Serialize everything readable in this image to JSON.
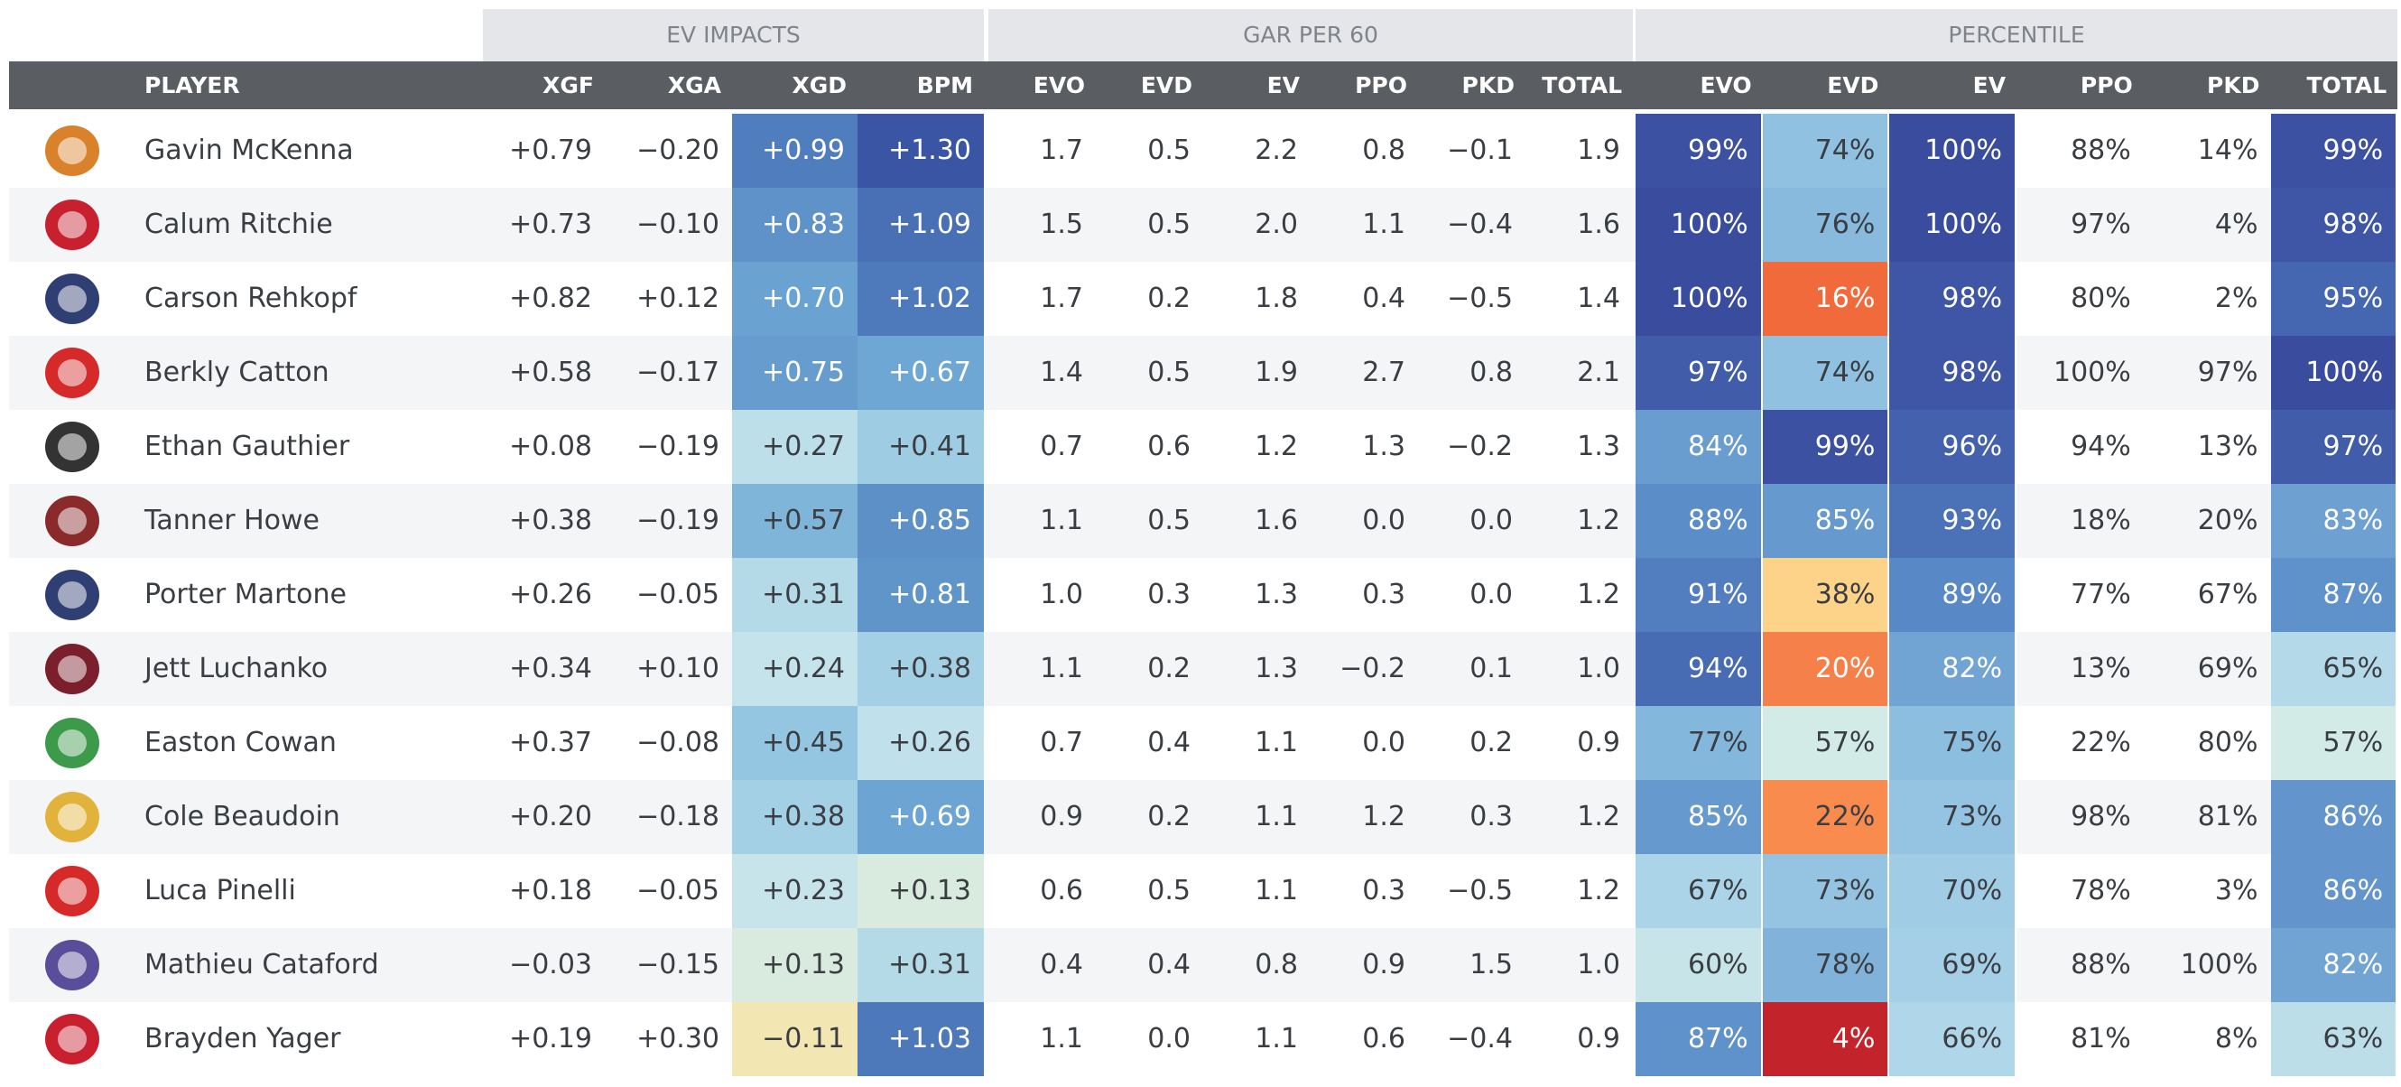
{
  "group_headers": [
    "EV IMPACTS",
    "GAR PER 60",
    "PERCENTILE"
  ],
  "columns": [
    "PLAYER",
    "XGF",
    "XGA",
    "XGD",
    "BPM",
    "EVO",
    "EVD",
    "EV",
    "PPO",
    "PKD",
    "TOTAL",
    "EVO",
    "EVD",
    "EV",
    "PPO",
    "PKD",
    "TOTAL"
  ],
  "rows": [
    {
      "player": "Gavin McKenna",
      "cells": [
        "+0.79",
        "−0.20",
        "+0.99",
        "+1.30",
        "1.7",
        "0.5",
        "2.2",
        "0.8",
        "−0.1",
        "1.9",
        "99%",
        "74%",
        "100%",
        "88%",
        "14%",
        "99%"
      ]
    },
    {
      "player": "Calum Ritchie",
      "cells": [
        "+0.73",
        "−0.10",
        "+0.83",
        "+1.09",
        "1.5",
        "0.5",
        "2.0",
        "1.1",
        "−0.4",
        "1.6",
        "100%",
        "76%",
        "100%",
        "97%",
        "4%",
        "98%"
      ]
    },
    {
      "player": "Carson Rehkopf",
      "cells": [
        "+0.82",
        "+0.12",
        "+0.70",
        "+1.02",
        "1.7",
        "0.2",
        "1.8",
        "0.4",
        "−0.5",
        "1.4",
        "100%",
        "16%",
        "98%",
        "80%",
        "2%",
        "95%"
      ]
    },
    {
      "player": "Berkly Catton",
      "cells": [
        "+0.58",
        "−0.17",
        "+0.75",
        "+0.67",
        "1.4",
        "0.5",
        "1.9",
        "2.7",
        "0.8",
        "2.1",
        "97%",
        "74%",
        "98%",
        "100%",
        "97%",
        "100%"
      ]
    },
    {
      "player": "Ethan Gauthier",
      "cells": [
        "+0.08",
        "−0.19",
        "+0.27",
        "+0.41",
        "0.7",
        "0.6",
        "1.2",
        "1.3",
        "−0.2",
        "1.3",
        "84%",
        "99%",
        "96%",
        "94%",
        "13%",
        "97%"
      ]
    },
    {
      "player": "Tanner Howe",
      "cells": [
        "+0.38",
        "−0.19",
        "+0.57",
        "+0.85",
        "1.1",
        "0.5",
        "1.6",
        "0.0",
        "0.0",
        "1.2",
        "88%",
        "85%",
        "93%",
        "18%",
        "20%",
        "83%"
      ]
    },
    {
      "player": "Porter Martone",
      "cells": [
        "+0.26",
        "−0.05",
        "+0.31",
        "+0.81",
        "1.0",
        "0.3",
        "1.3",
        "0.3",
        "0.0",
        "1.2",
        "91%",
        "38%",
        "89%",
        "77%",
        "67%",
        "87%"
      ]
    },
    {
      "player": "Jett Luchanko",
      "cells": [
        "+0.34",
        "+0.10",
        "+0.24",
        "+0.38",
        "1.1",
        "0.2",
        "1.3",
        "−0.2",
        "0.1",
        "1.0",
        "94%",
        "20%",
        "82%",
        "13%",
        "69%",
        "65%"
      ]
    },
    {
      "player": "Easton Cowan",
      "cells": [
        "+0.37",
        "−0.08",
        "+0.45",
        "+0.26",
        "0.7",
        "0.4",
        "1.1",
        "0.0",
        "0.2",
        "0.9",
        "77%",
        "57%",
        "75%",
        "22%",
        "80%",
        "57%"
      ]
    },
    {
      "player": "Cole Beaudoin",
      "cells": [
        "+0.20",
        "−0.18",
        "+0.38",
        "+0.69",
        "0.9",
        "0.2",
        "1.1",
        "1.2",
        "0.3",
        "1.2",
        "85%",
        "22%",
        "73%",
        "98%",
        "81%",
        "86%"
      ]
    },
    {
      "player": "Luca Pinelli",
      "cells": [
        "+0.18",
        "−0.05",
        "+0.23",
        "+0.13",
        "0.6",
        "0.5",
        "1.1",
        "0.3",
        "−0.5",
        "1.2",
        "67%",
        "73%",
        "70%",
        "78%",
        "3%",
        "86%"
      ]
    },
    {
      "player": "Mathieu Cataford",
      "cells": [
        "−0.03",
        "−0.15",
        "+0.13",
        "+0.31",
        "0.4",
        "0.4",
        "0.8",
        "0.9",
        "1.5",
        "1.0",
        "60%",
        "78%",
        "69%",
        "88%",
        "100%",
        "82%"
      ]
    },
    {
      "player": "Brayden Yager",
      "cells": [
        "+0.19",
        "+0.30",
        "−0.11",
        "+1.03",
        "1.1",
        "0.0",
        "1.1",
        "0.6",
        "−0.4",
        "0.9",
        "87%",
        "4%",
        "66%",
        "81%",
        "8%",
        "63%"
      ]
    }
  ]
}
